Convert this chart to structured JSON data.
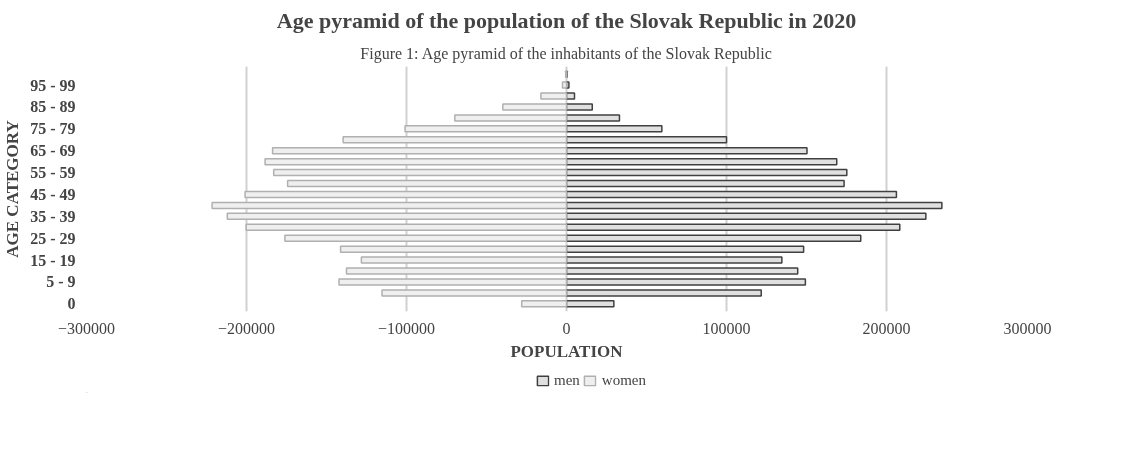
{
  "chart_data": {
    "type": "bar",
    "orientation": "horizontal",
    "stacked": true,
    "title": "Age pyramid of the population of the Slovak Republic in 2020",
    "xlabel": "POPULATION",
    "ylabel": "AGE CATEGORY",
    "annotations": [
      "Figure 1: Age pyramid of the inhabitants of the Slovak Republic"
    ],
    "categories": [
      null,
      "95 - 99",
      null,
      "85 - 89",
      null,
      "75 - 79",
      null,
      "65 - 69",
      null,
      "55 - 59",
      null,
      "45 - 49",
      null,
      "35 - 39",
      null,
      "25 - 29",
      null,
      "15 - 19",
      null,
      "5 - 9",
      null,
      "0"
    ],
    "series": [
      {
        "name": "men",
        "color": "#e0e0e0",
        "values": [
          300,
          1500,
          5000,
          16100,
          33100,
          59600,
          100000,
          150300,
          168900,
          175200,
          173500,
          206200,
          234600,
          224600,
          208300,
          183900,
          148200,
          134600,
          144500,
          149300,
          121700,
          29600
        ]
      },
      {
        "name": "women",
        "color": "#efefef",
        "values": [
          -500,
          -2500,
          -16000,
          -39800,
          -69800,
          -100900,
          -139600,
          -183700,
          -188400,
          -183000,
          -174300,
          -200900,
          -221500,
          -212000,
          -200200,
          -176000,
          -141200,
          -128200,
          -137500,
          -142200,
          -115300,
          -28000
        ]
      }
    ],
    "xlim": [
      -300000,
      300000
    ],
    "xticks": [
      -300000,
      -200000,
      -100000,
      0,
      100000,
      200000,
      300000
    ],
    "grid": "x",
    "legend": "bottom"
  }
}
